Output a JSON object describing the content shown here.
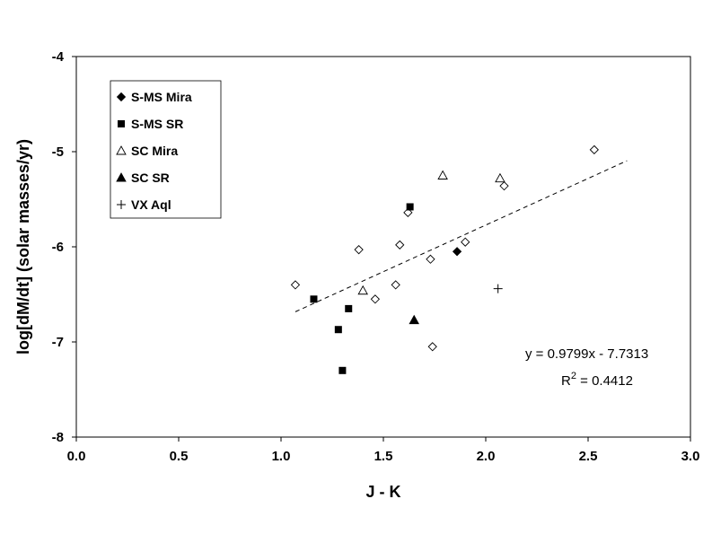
{
  "chart_data": {
    "type": "scatter",
    "xlabel": "J - K",
    "ylabel": "log[dM/dt]  (solar masses/yr)",
    "xlim": [
      0.0,
      3.0
    ],
    "ylim": [
      -8,
      -4
    ],
    "x_ticks": [
      "0.0",
      "0.5",
      "1.0",
      "1.5",
      "2.0",
      "2.5",
      "3.0"
    ],
    "y_ticks": [
      "-4",
      "-5",
      "-6",
      "-7",
      "-8"
    ],
    "grid": false,
    "legend_position": "top-left",
    "series": [
      {
        "name": "S-MS Mira",
        "marker": "filled-diamond",
        "points": [
          [
            1.86,
            -6.05
          ]
        ]
      },
      {
        "name": "S-MS SR",
        "marker": "filled-square",
        "points": [
          [
            1.16,
            -6.55
          ],
          [
            1.33,
            -6.65
          ],
          [
            1.28,
            -6.87
          ],
          [
            1.3,
            -7.3
          ],
          [
            1.63,
            -5.58
          ]
        ]
      },
      {
        "name": "SC Mira",
        "marker": "open-triangle",
        "points": [
          [
            1.4,
            -6.46
          ],
          [
            1.79,
            -5.25
          ],
          [
            2.07,
            -5.28
          ]
        ]
      },
      {
        "name": "SC SR",
        "marker": "filled-triangle",
        "points": [
          [
            1.65,
            -6.77
          ]
        ]
      },
      {
        "name": "VX Aql",
        "marker": "plus",
        "points": [
          [
            2.06,
            -6.44
          ]
        ]
      }
    ],
    "unlabeled_points": {
      "marker": "open-diamond",
      "points": [
        [
          1.07,
          -6.4
        ],
        [
          1.38,
          -6.03
        ],
        [
          1.46,
          -6.55
        ],
        [
          1.56,
          -6.4
        ],
        [
          1.58,
          -5.98
        ],
        [
          1.62,
          -5.64
        ],
        [
          1.73,
          -6.13
        ],
        [
          1.74,
          -7.05
        ],
        [
          1.9,
          -5.95
        ],
        [
          2.09,
          -5.36
        ],
        [
          2.53,
          -4.98
        ]
      ]
    },
    "trendline": {
      "style": "dashed",
      "slope": 0.9799,
      "intercept": -7.7313,
      "x_range": [
        1.07,
        2.69
      ],
      "equation": "y = 0.9799x - 7.7313",
      "r2_prefix": "R",
      "r2_exp": "2",
      "r2_value": " = 0.4412"
    }
  }
}
